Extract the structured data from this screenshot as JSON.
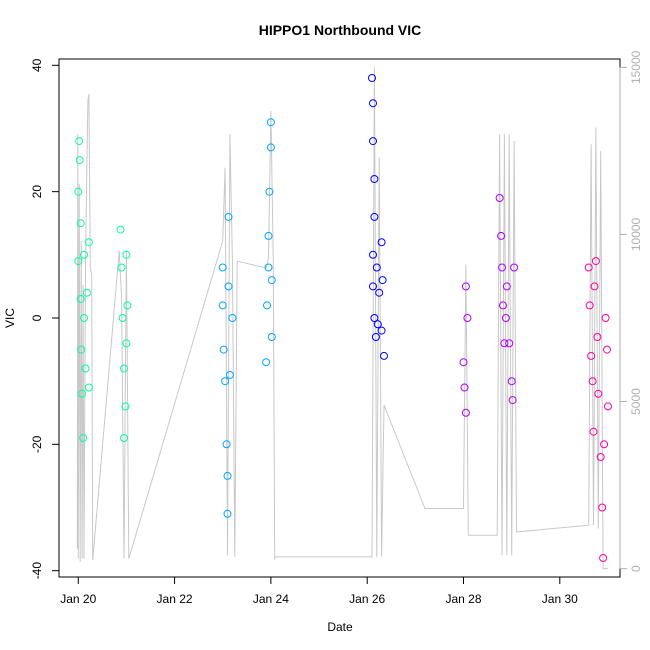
{
  "chart_data": {
    "type": "scatter",
    "title": "HIPPO1 Northbound VIC",
    "xlabel": "Date",
    "ylabel": "VIC",
    "x_ticks": [
      "Jan 20",
      "Jan 22",
      "Jan 24",
      "Jan 26",
      "Jan 28",
      "Jan 30"
    ],
    "x_tick_days": [
      20,
      22,
      24,
      26,
      28,
      30
    ],
    "xlim": [
      19.6,
      31.25
    ],
    "ylim": [
      -41,
      41
    ],
    "y_ticks": [
      -40,
      -20,
      0,
      20,
      40
    ],
    "y2lim": [
      -250,
      15250
    ],
    "y2_ticks": [
      0,
      5000,
      10000,
      15000
    ],
    "grid": false,
    "legend": "none",
    "series": [
      {
        "color": "#00FF9F",
        "points": [
          [
            20.0,
            20
          ],
          [
            20.0,
            9
          ],
          [
            20.02,
            28
          ],
          [
            20.03,
            25
          ],
          [
            20.05,
            15
          ],
          [
            20.05,
            3
          ],
          [
            20.06,
            -5
          ],
          [
            20.08,
            -12
          ],
          [
            20.1,
            -19
          ],
          [
            20.12,
            10
          ],
          [
            20.12,
            0
          ],
          [
            20.15,
            -8
          ],
          [
            20.18,
            4
          ],
          [
            20.22,
            12
          ],
          [
            20.22,
            -11
          ],
          [
            20.88,
            14
          ],
          [
            20.9,
            8
          ],
          [
            20.92,
            0
          ],
          [
            20.95,
            -8
          ],
          [
            20.95,
            -19
          ],
          [
            20.98,
            -14
          ],
          [
            21.0,
            10
          ],
          [
            21.02,
            2
          ],
          [
            21.0,
            -4
          ]
        ]
      },
      {
        "color": "#00A6FF",
        "points": [
          [
            23.0,
            8
          ],
          [
            23.0,
            2
          ],
          [
            23.02,
            -5
          ],
          [
            23.05,
            -10
          ],
          [
            23.08,
            -20
          ],
          [
            23.1,
            -25
          ],
          [
            23.1,
            -31
          ],
          [
            23.12,
            16
          ],
          [
            23.12,
            5
          ],
          [
            23.15,
            -9
          ],
          [
            23.2,
            0
          ],
          [
            23.9,
            -7
          ],
          [
            23.92,
            2
          ],
          [
            23.95,
            8
          ],
          [
            23.95,
            13
          ],
          [
            23.97,
            20
          ],
          [
            24.0,
            27
          ],
          [
            24.0,
            31
          ],
          [
            24.02,
            6
          ],
          [
            24.02,
            -3
          ]
        ]
      },
      {
        "color": "#0000FF",
        "points": [
          [
            26.1,
            38
          ],
          [
            26.12,
            34
          ],
          [
            26.12,
            28
          ],
          [
            26.15,
            22
          ],
          [
            26.15,
            16
          ],
          [
            26.12,
            10
          ],
          [
            26.12,
            5
          ],
          [
            26.15,
            0
          ],
          [
            26.18,
            -3
          ],
          [
            26.2,
            8
          ],
          [
            26.22,
            -1
          ],
          [
            26.25,
            4
          ],
          [
            26.3,
            12
          ],
          [
            26.32,
            6
          ],
          [
            26.35,
            -6
          ],
          [
            26.3,
            -2
          ]
        ]
      },
      {
        "color": "#B300FF",
        "points": [
          [
            28.0,
            -7
          ],
          [
            28.02,
            -11
          ],
          [
            28.05,
            -15
          ],
          [
            28.05,
            5
          ],
          [
            28.08,
            0
          ],
          [
            28.75,
            19
          ],
          [
            28.78,
            13
          ],
          [
            28.8,
            8
          ],
          [
            28.82,
            2
          ],
          [
            28.85,
            -4
          ],
          [
            28.88,
            0
          ],
          [
            28.9,
            5
          ],
          [
            28.95,
            -4
          ],
          [
            29.0,
            -10
          ],
          [
            29.02,
            -13
          ],
          [
            29.05,
            8
          ]
        ]
      },
      {
        "color": "#FF00A6",
        "points": [
          [
            30.6,
            8
          ],
          [
            30.62,
            2
          ],
          [
            30.65,
            -6
          ],
          [
            30.68,
            -10
          ],
          [
            30.7,
            -18
          ],
          [
            30.72,
            5
          ],
          [
            30.75,
            9
          ],
          [
            30.78,
            -3
          ],
          [
            30.8,
            -12
          ],
          [
            30.85,
            -22
          ],
          [
            30.88,
            -30
          ],
          [
            30.9,
            -38
          ],
          [
            30.92,
            -20
          ],
          [
            30.95,
            0
          ],
          [
            30.98,
            -5
          ],
          [
            31.0,
            -14
          ]
        ]
      }
    ],
    "altitude_line": {
      "color": "#c8c8c8",
      "x": [
        19.98,
        19.99,
        20.0,
        20.02,
        20.04,
        20.06,
        20.08,
        20.1,
        20.12,
        20.15,
        20.18,
        20.2,
        20.22,
        20.25,
        20.28,
        20.3,
        20.85,
        20.9,
        20.95,
        21.0,
        21.05,
        23.0,
        23.05,
        23.1,
        23.15,
        23.2,
        23.25,
        23.3,
        23.9,
        23.95,
        24.0,
        24.05,
        24.08,
        24.1,
        26.1,
        26.15,
        26.2,
        26.25,
        26.3,
        26.35,
        26.4,
        27.2,
        28.0,
        28.05,
        28.1,
        28.7,
        28.75,
        28.8,
        28.85,
        28.9,
        28.95,
        29.0,
        29.05,
        29.1,
        30.6,
        30.65,
        30.7,
        30.75,
        30.8,
        30.85,
        30.9,
        31.0
      ],
      "y": [
        600,
        13000,
        300,
        11500,
        200,
        9800,
        300,
        8500,
        300,
        9000,
        12200,
        14000,
        14200,
        9000,
        8800,
        250,
        9500,
        8100,
        300,
        9500,
        300,
        9800,
        12000,
        400,
        13000,
        9200,
        350,
        9200,
        9000,
        9300,
        13700,
        9200,
        300,
        350,
        350,
        15000,
        350,
        12300,
        350,
        4900,
        4700,
        1800,
        1800,
        9100,
        1000,
        1000,
        13000,
        400,
        13000,
        400,
        13000,
        400,
        12800,
        1100,
        1300,
        12700,
        1300,
        13200,
        1200,
        12500,
        0,
        0
      ]
    }
  }
}
